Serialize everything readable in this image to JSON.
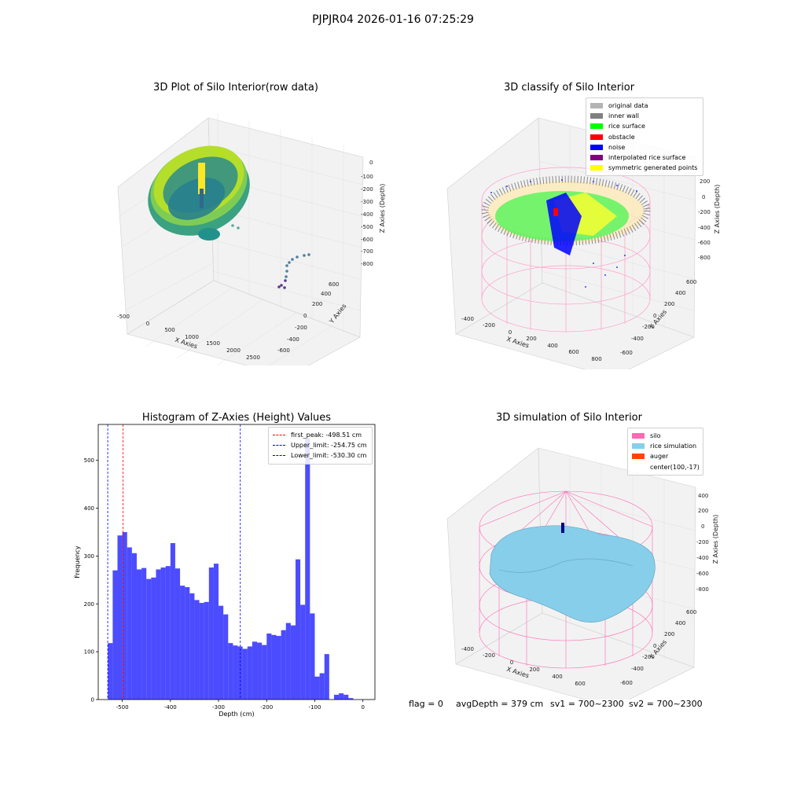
{
  "figure": {
    "suptitle": "PJPJR04 2026-01-16 07:25:29"
  },
  "panel_raw": {
    "title": "3D Plot of Silo Interior(row data)",
    "x_label": "X Axies",
    "y_label": "Y Axies",
    "z_label": "Z Axies (Depth)",
    "x_ticks": [
      "-500",
      "0",
      "500",
      "1000",
      "1500",
      "2000",
      "2500"
    ],
    "y_ticks": [
      "600",
      "400",
      "200",
      "0",
      "-200",
      "-400",
      "-600"
    ],
    "z_ticks": [
      "0",
      "-100",
      "-200",
      "-300",
      "-400",
      "-500",
      "-600",
      "-700",
      "-800"
    ],
    "colormap": "viridis"
  },
  "panel_classify": {
    "title": "3D classify of Silo Interior",
    "x_label": "X Axies",
    "y_label": "Y Axies",
    "z_label": "Z Axies (Depth)",
    "x_ticks": [
      "-400",
      "-200",
      "0",
      "200",
      "400",
      "600",
      "800"
    ],
    "y_ticks": [
      "600",
      "400",
      "200",
      "0",
      "-200",
      "-400",
      "-600"
    ],
    "z_ticks": [
      "200",
      "0",
      "-200",
      "-400",
      "-600",
      "-800"
    ],
    "legend": [
      {
        "label": "original data",
        "color": "#b4b4b4"
      },
      {
        "label": "inner wall",
        "color": "#808080"
      },
      {
        "label": "rice surface",
        "color": "#00ff00"
      },
      {
        "label": "obstacle",
        "color": "#ff0000"
      },
      {
        "label": "noise",
        "color": "#0000ff"
      },
      {
        "label": "interpolated rice surface",
        "color": "#800080"
      },
      {
        "label": "symmetric generated points",
        "color": "#ffff00"
      }
    ]
  },
  "panel_sim": {
    "title": "3D simulation of Silo Interior",
    "x_label": "X Axies",
    "y_label": "Y Axies",
    "z_label": "Z Axies (Depth)",
    "x_ticks": [
      "-400",
      "-200",
      "0",
      "200",
      "400",
      "600"
    ],
    "y_ticks": [
      "600",
      "400",
      "200",
      "0",
      "-200",
      "-400",
      "-600"
    ],
    "z_ticks": [
      "400",
      "200",
      "0",
      "-200",
      "-400",
      "-600",
      "-800"
    ],
    "legend": [
      {
        "label": "silo",
        "color": "#ff69b4"
      },
      {
        "label": "rice simulation",
        "color": "#87ceeb"
      },
      {
        "label": "auger",
        "color": "#ff4500"
      },
      {
        "label": "center(100,-17)",
        "color": ""
      }
    ]
  },
  "footer": {
    "flag": "flag = 0",
    "avg_depth": "avgDepth = 379 cm",
    "sv1": "sv1 = 700~2300",
    "sv2": "sv2 = 700~2300"
  },
  "chart_data": {
    "type": "bar",
    "title": "Histogram of Z-Axies (Height) Values",
    "xlabel": "Depth (cm)",
    "ylabel": "Frequency",
    "xlim": [
      -550,
      25
    ],
    "ylim": [
      0,
      575
    ],
    "x_ticks": [
      -500,
      -400,
      -300,
      -200,
      -100,
      0
    ],
    "y_ticks": [
      0,
      100,
      200,
      300,
      400,
      500
    ],
    "bar_color": "#0000ff",
    "bin_width": 10,
    "bins_start": [
      -540,
      -530,
      -520,
      -510,
      -500,
      -490,
      -480,
      -470,
      -460,
      -450,
      -440,
      -430,
      -420,
      -410,
      -400,
      -390,
      -380,
      -370,
      -360,
      -350,
      -340,
      -330,
      -320,
      -310,
      -300,
      -290,
      -280,
      -270,
      -260,
      -250,
      -240,
      -230,
      -220,
      -210,
      -200,
      -190,
      -180,
      -170,
      -160,
      -150,
      -140,
      -130,
      -120,
      -110,
      -100,
      -90,
      -80,
      -70,
      -60,
      -50,
      -40,
      -30,
      -20,
      -10
    ],
    "values": [
      0,
      118,
      270,
      343,
      350,
      318,
      306,
      272,
      275,
      252,
      255,
      272,
      276,
      279,
      327,
      274,
      238,
      235,
      222,
      208,
      202,
      204,
      276,
      284,
      196,
      178,
      118,
      113,
      111,
      106,
      111,
      121,
      119,
      114,
      138,
      135,
      133,
      145,
      160,
      155,
      293,
      198,
      546,
      180,
      48,
      55,
      95,
      0,
      10,
      13,
      10,
      3,
      0,
      0
    ],
    "vlines": [
      {
        "x": -498.51,
        "label": "first_peak: -498.51 cm",
        "color": "#ff0000"
      },
      {
        "x": -254.75,
        "label": "Upper_limit: -254.75 cm",
        "color": "#0000ff"
      },
      {
        "x": -530.3,
        "label": "Lower_limit: -530.30 cm",
        "color": "#0000ff"
      }
    ],
    "legend_position": "upper right"
  }
}
